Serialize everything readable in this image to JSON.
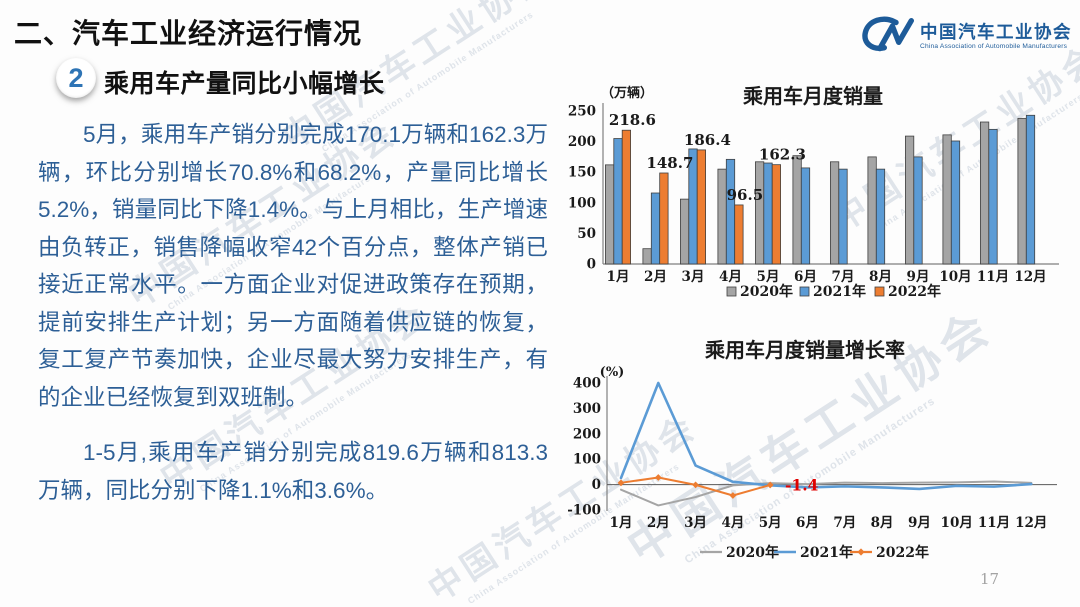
{
  "slide": {
    "title": "二、汽车工业经济运行情况",
    "section_number": "2",
    "section_heading": "乘用车产量同比小幅增长",
    "paragraph1": "5月，乘用车产销分别完成170.1万辆和162.3万辆，环比分别增长70.8%和68.2%，产量同比增长5.2%，销量同比下降1.4%。与上月相比，生产增速由负转正，销售降幅收窄42个百分点，整体产销已接近正常水平。一方面企业对促进政策存在预期，提前安排生产计划；另一方面随着供应链的恢复，复工复产节奏加快，企业尽最大努力安排生产，有的企业已经恢复到双班制。",
    "paragraph2": "1-5月,乘用车产销分别完成819.6万辆和813.3万辆，同比分别下降1.1%和3.6%。",
    "page_number": "17"
  },
  "logo": {
    "name_cn": "中国汽车工业协会",
    "name_en": "China Association of Automobile Manufacturers"
  },
  "watermark": {
    "text": "中国汽车工业协会",
    "subtext": "China Association of Automobile Manufacturers"
  },
  "colors": {
    "body_text": "#2d5f96",
    "accent_blue": "#2e74b5",
    "series_gray": "#a5a5a5",
    "series_blue": "#5b9bd5",
    "series_orange": "#ed7d31",
    "annotation_red": "#e00000",
    "axis_gray": "#808080"
  },
  "chart_data": [
    {
      "type": "bar",
      "title": "乘用车月度销量",
      "unit_label": "（万辆）",
      "xlabel": "",
      "ylabel": "万辆",
      "ylim": [
        0,
        250
      ],
      "yticks": [
        0,
        50,
        100,
        150,
        200,
        250
      ],
      "grid": false,
      "legend_position": "bottom",
      "categories": [
        "1月",
        "2月",
        "3月",
        "4月",
        "5月",
        "6月",
        "7月",
        "8月",
        "9月",
        "10月",
        "11月",
        "12月"
      ],
      "series": [
        {
          "name": "2020年",
          "color": "#a5a5a5",
          "values": [
            162,
            25,
            106,
            155,
            167,
            177,
            167,
            175,
            209,
            211,
            232,
            238
          ]
        },
        {
          "name": "2021年",
          "color": "#5b9bd5",
          "values": [
            205,
            116,
            188,
            171,
            165,
            157,
            155,
            155,
            175,
            201,
            220,
            243
          ]
        },
        {
          "name": "2022年",
          "color": "#ed7d31",
          "values": [
            218.6,
            148.7,
            186.4,
            96.5,
            162.3
          ]
        }
      ],
      "data_labels": {
        "series": "2022年",
        "values": [
          "218.6",
          "148.7",
          "186.4",
          "96.5",
          "162.3"
        ]
      }
    },
    {
      "type": "line",
      "title": "乘用车月度销量增长率",
      "unit_label": "(%)",
      "xlabel": "",
      "ylabel": "%",
      "ylim": [
        -100,
        400
      ],
      "yticks": [
        400,
        300,
        200,
        100,
        0,
        -100
      ],
      "grid": false,
      "legend_position": "bottom",
      "categories": [
        "1月",
        "2月",
        "3月",
        "4月",
        "5月",
        "6月",
        "7月",
        "8月",
        "9月",
        "10月",
        "11月",
        "12月"
      ],
      "series": [
        {
          "name": "2020年",
          "color": "#a5a5a5",
          "marker": "none",
          "values": [
            -20,
            -82,
            -49,
            -3,
            6,
            2,
            8,
            6,
            8,
            9,
            12,
            7
          ]
        },
        {
          "name": "2021年",
          "color": "#5b9bd5",
          "marker": "none",
          "values": [
            26,
            400,
            75,
            11,
            -3,
            -11,
            -7,
            -11,
            -17,
            -5,
            -8,
            2
          ]
        },
        {
          "name": "2022年",
          "color": "#ed7d31",
          "marker": "diamond",
          "values": [
            7,
            28,
            -1,
            -43,
            -1.4
          ]
        }
      ],
      "annotation": {
        "text": "-1.4",
        "color": "#e00000",
        "attached_to": "2022年-5月"
      }
    }
  ]
}
